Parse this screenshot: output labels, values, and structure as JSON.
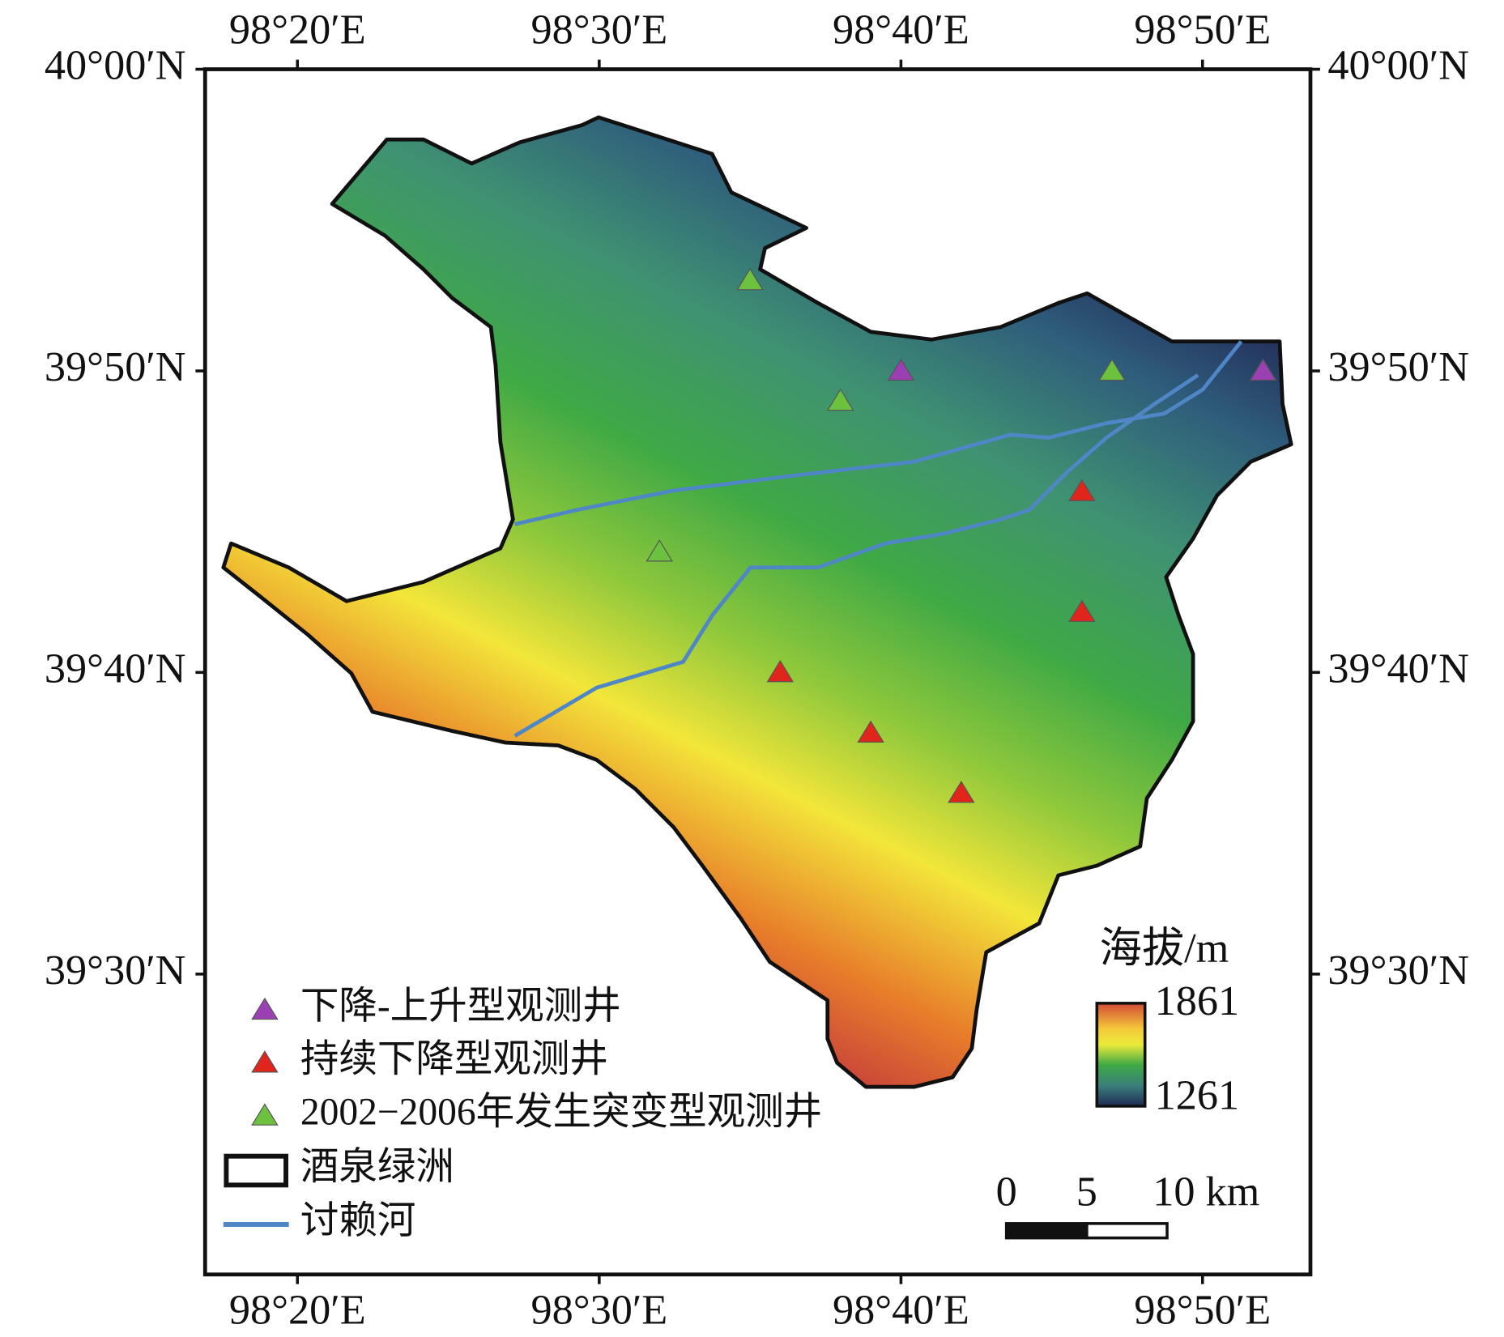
{
  "map": {
    "xlim": [
      98.2823,
      98.8929
    ],
    "ylim": [
      39.334,
      40.0
    ],
    "xticks": [
      {
        "value": 98.3333,
        "label": "98°20′E"
      },
      {
        "value": 98.5,
        "label": "98°30′E"
      },
      {
        "value": 98.6667,
        "label": "98°40′E"
      },
      {
        "value": 98.8333,
        "label": "98°50′E"
      }
    ],
    "yticks": [
      {
        "value": 40.0,
        "label": "40°00′N"
      },
      {
        "value": 39.8333,
        "label": "39°50′N"
      },
      {
        "value": 39.6667,
        "label": "39°40′N"
      },
      {
        "value": 39.5,
        "label": "39°30′N"
      }
    ],
    "series": [
      {
        "name": "下降-上升型观测井",
        "color": "#9b40b3",
        "x": [
          98.6667,
          98.8667
        ],
        "y": [
          39.8333,
          39.8333
        ]
      },
      {
        "name": "持续下降型观测井",
        "color": "#e0261c",
        "x": [
          98.7667,
          98.7667,
          98.6,
          98.65,
          98.7
        ],
        "y": [
          39.7667,
          39.7,
          39.6667,
          39.6333,
          39.6
        ]
      },
      {
        "name": "2002−2006年发生突变型观测井",
        "color": "#6cc13e",
        "x": [
          98.5833,
          98.6333,
          98.7833,
          98.5333
        ],
        "y": [
          39.8833,
          39.8167,
          39.8333,
          39.7333
        ]
      }
    ],
    "boundary_label": "酒泉绿洲",
    "river_label": "讨赖河",
    "colorbar": {
      "title": "海拔/m",
      "max": 1861,
      "min": 1261
    },
    "scale_bar": {
      "ticks": [
        0,
        5,
        {
          "value": 10,
          "label": "10 km"
        }
      ]
    }
  }
}
